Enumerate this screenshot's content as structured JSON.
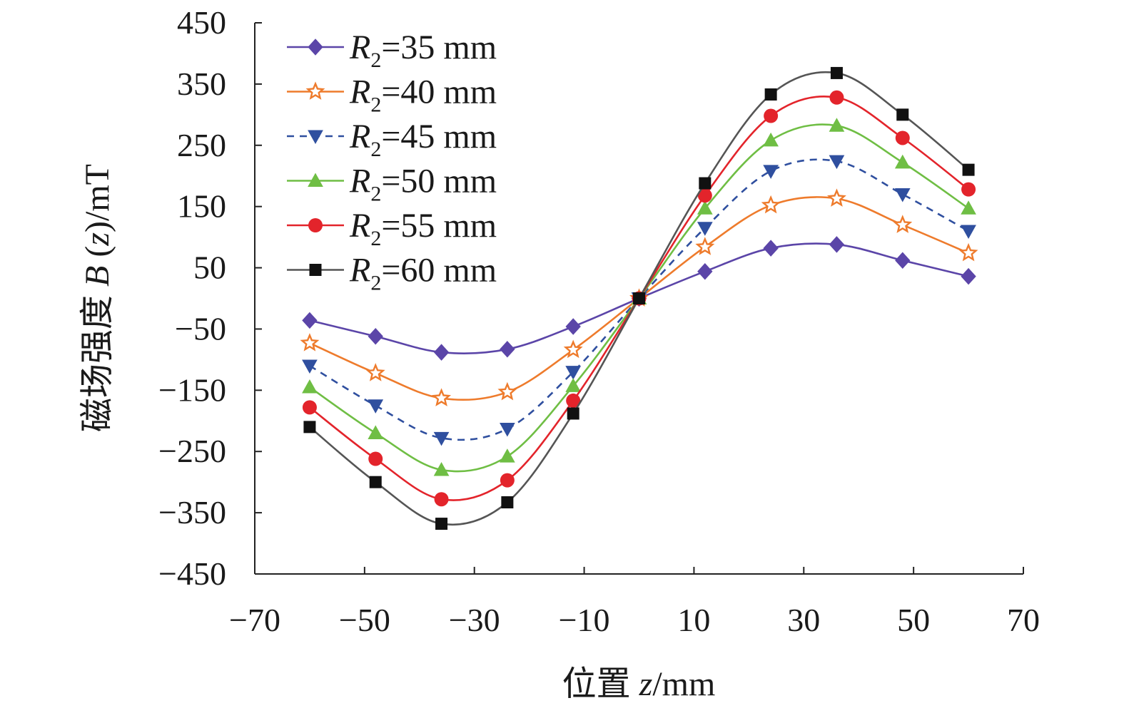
{
  "chart_data": {
    "type": "line",
    "title": "",
    "xlabel": "位置 z/mm",
    "xlabel_parts": {
      "prefix": "位置 ",
      "var": "z",
      "suffix": "/mm"
    },
    "ylabel": "磁场强度 B (z)/mT",
    "ylabel_parts": {
      "prefix": "磁场强度 ",
      "var1": "B",
      "mid": " (",
      "var2": "z",
      "suffix": ")/mT"
    },
    "xlim": [
      -70,
      70
    ],
    "ylim": [
      -450,
      450
    ],
    "xticks": [
      -70,
      -50,
      -30,
      -10,
      10,
      30,
      50,
      70
    ],
    "xtick_labels": [
      "−70",
      "−50",
      "−30",
      "−10",
      "10",
      "30",
      "50",
      "70"
    ],
    "yticks": [
      450,
      350,
      250,
      150,
      50,
      -50,
      -150,
      -250,
      -350,
      -450
    ],
    "ytick_labels": [
      "450",
      "350",
      "250",
      "150",
      "50",
      "−50",
      "−150",
      "−250",
      "−350",
      "−450"
    ],
    "grid": false,
    "legend_position": "top-left",
    "x": [
      -60,
      -48,
      -36,
      -24,
      -12,
      0,
      12,
      24,
      36,
      48,
      60
    ],
    "series": [
      {
        "name": "R2=35 mm",
        "label_var": "R",
        "label_sub": "2",
        "label_rest": "=35 mm",
        "color": "#5b45a8",
        "marker": "diamond",
        "dash": false,
        "values": [
          -36,
          -62,
          -88,
          -83,
          -46,
          0,
          44,
          82,
          88,
          62,
          36
        ]
      },
      {
        "name": "R2=40 mm",
        "label_var": "R",
        "label_sub": "2",
        "label_rest": "=40 mm",
        "color": "#ee7b2c",
        "marker": "star",
        "dash": false,
        "values": [
          -73,
          -122,
          -163,
          -153,
          -84,
          0,
          84,
          152,
          163,
          120,
          74
        ]
      },
      {
        "name": "R2=45 mm",
        "label_var": "R",
        "label_sub": "2",
        "label_rest": "=45 mm",
        "color": "#2f4f9f",
        "marker": "triangle-down",
        "dash": true,
        "values": [
          -110,
          -175,
          -228,
          -213,
          -120,
          0,
          115,
          208,
          224,
          170,
          110
        ]
      },
      {
        "name": "R2=50 mm",
        "label_var": "R",
        "label_sub": "2",
        "label_rest": "=50 mm",
        "color": "#6fbe44",
        "marker": "triangle-up",
        "dash": false,
        "values": [
          -145,
          -220,
          -280,
          -258,
          -143,
          0,
          147,
          258,
          282,
          222,
          147
        ]
      },
      {
        "name": "R2=55 mm",
        "label_var": "R",
        "label_sub": "2",
        "label_rest": "=55 mm",
        "color": "#e3242b",
        "marker": "circle",
        "dash": false,
        "values": [
          -178,
          -262,
          -328,
          -297,
          -167,
          0,
          168,
          298,
          328,
          262,
          178
        ]
      },
      {
        "name": "R2=60 mm",
        "label_var": "R",
        "label_sub": "2",
        "label_rest": "=60 mm",
        "color": "#555555",
        "marker": "square",
        "markerColor": "#111111",
        "dash": false,
        "values": [
          -210,
          -300,
          -368,
          -333,
          -188,
          0,
          188,
          333,
          368,
          300,
          210
        ]
      }
    ]
  }
}
